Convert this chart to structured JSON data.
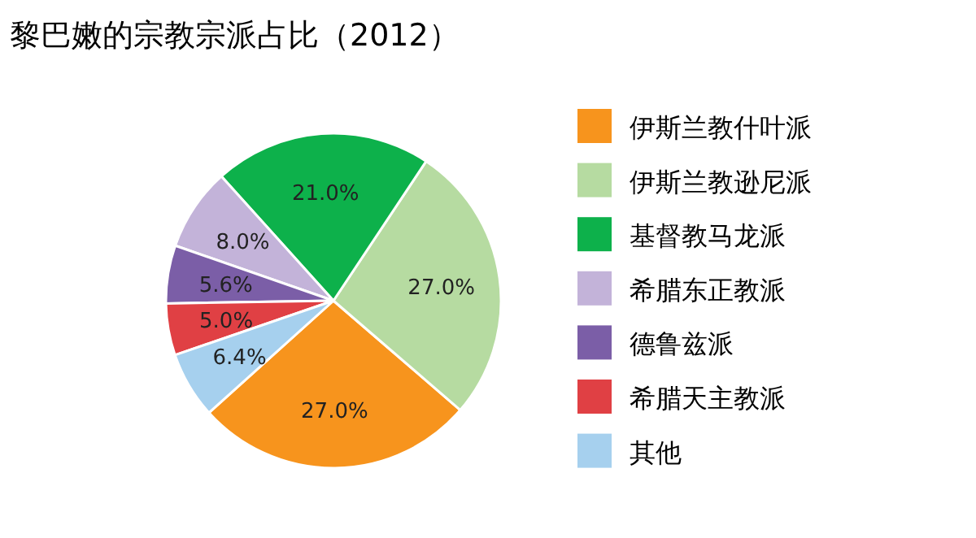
{
  "chart_data": {
    "type": "pie",
    "title": "黎巴嫩的宗教宗派占比（2012）",
    "categories": [
      "伊斯兰教什叶派",
      "伊斯兰教逊尼派",
      "基督教马龙派",
      "希腊东正教派",
      "德鲁兹派",
      "希腊天主教派",
      "其他"
    ],
    "values": [
      27.0,
      27.0,
      21.0,
      8.0,
      5.6,
      5.0,
      6.4
    ],
    "colors": [
      "#f7941d",
      "#b6dba1",
      "#0db14b",
      "#c3b3d9",
      "#7b5ea7",
      "#e04044",
      "#a6d0ee"
    ],
    "value_labels": [
      "27.0%",
      "27.0%",
      "21.0%",
      "8.0%",
      "5.6%",
      "5.0%",
      "6.4%"
    ],
    "legend": "right"
  }
}
